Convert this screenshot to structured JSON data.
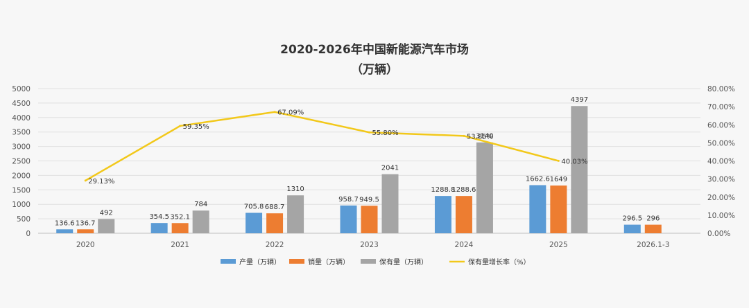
{
  "chart_data": {
    "type": "bar",
    "title": "2020-2026年中国新能源汽车市场",
    "subtitle": "（万辆）",
    "categories": [
      "2020",
      "2021",
      "2022",
      "2023",
      "2024",
      "2025",
      "2026.1-3"
    ],
    "y_left": {
      "min": 0,
      "max": 5000,
      "ticks": [
        "0",
        "500",
        "1000",
        "1500",
        "2000",
        "2500",
        "3000",
        "3500",
        "4000",
        "4500",
        "5000"
      ]
    },
    "y_right": {
      "min": 0,
      "max": 80,
      "ticks": [
        "0.00%",
        "10.00%",
        "20.00%",
        "30.00%",
        "40.00%",
        "50.00%",
        "60.00%",
        "70.00%",
        "80.00%"
      ]
    },
    "series": [
      {
        "name": "产量（万辆）",
        "type": "bar",
        "axis": "left",
        "color": "#5B9BD5",
        "values": [
          136.6,
          354.5,
          705.8,
          958.7,
          1288.8,
          1662.6,
          296.5
        ],
        "labels": [
          "136.6",
          "354.5",
          "705.8",
          "958.7",
          "1288.8",
          "1662.6",
          "296.5"
        ]
      },
      {
        "name": "销量（万辆）",
        "type": "bar",
        "axis": "left",
        "color": "#ED7D31",
        "values": [
          136.7,
          352.1,
          688.7,
          949.5,
          1288.6,
          1649,
          296
        ],
        "labels": [
          "136.7",
          "352.1",
          "688.7",
          "949.5",
          "1288.6",
          "1649",
          "296"
        ]
      },
      {
        "name": "保有量（万辆）",
        "type": "bar",
        "axis": "left",
        "color": "#A5A5A5",
        "values": [
          492,
          784,
          1310,
          2041,
          3140,
          4397,
          null
        ],
        "labels": [
          "492",
          "784",
          "1310",
          "2041",
          "3140",
          "4397",
          ""
        ]
      },
      {
        "name": "保有量增长率（%）",
        "type": "line",
        "axis": "right",
        "color": "#F2C81A",
        "values": [
          29.13,
          59.35,
          67.09,
          55.8,
          53.85,
          40.03,
          null
        ],
        "labels": [
          "29.13%",
          "59.35%",
          "67.09%",
          "55.80%",
          "53.85%",
          "40.03%",
          ""
        ]
      }
    ],
    "grid": true,
    "legend": "bottom"
  }
}
